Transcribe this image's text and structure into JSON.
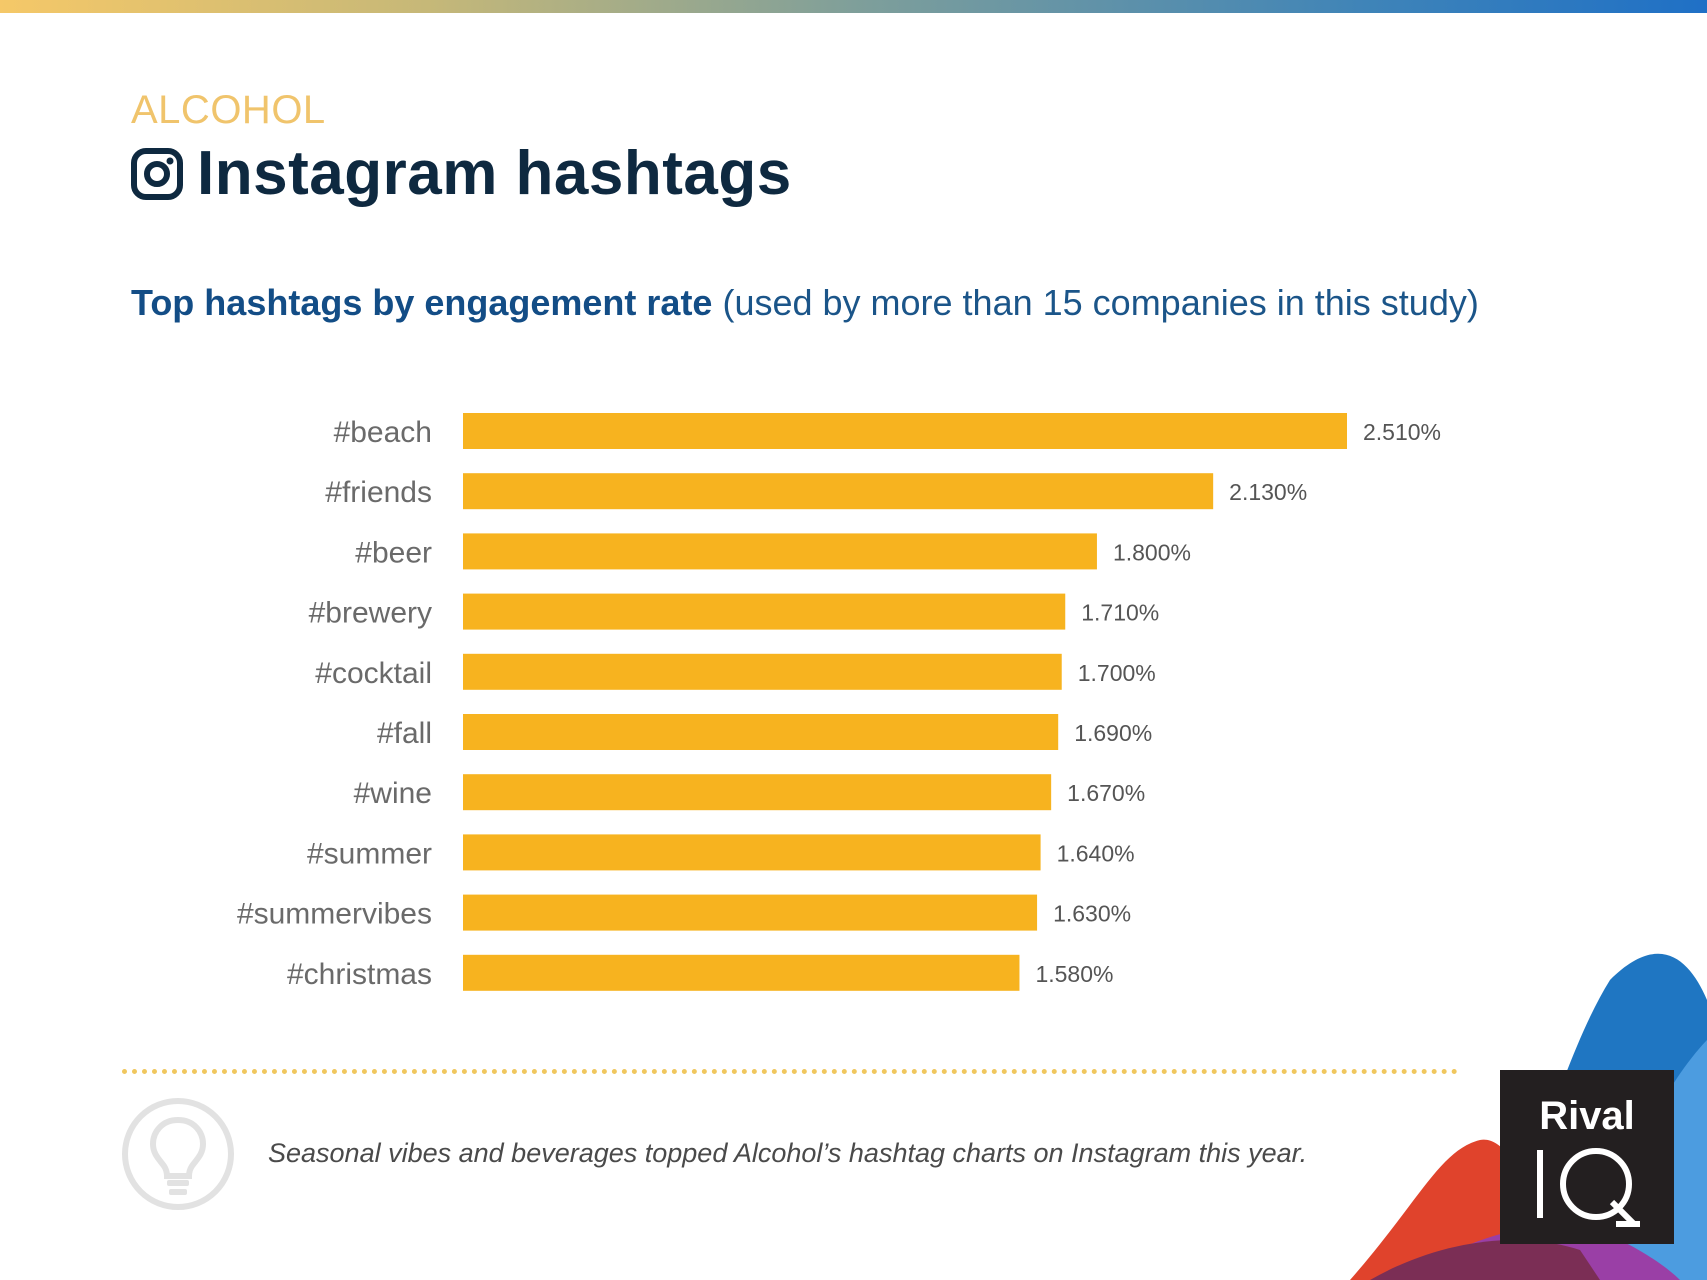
{
  "header": {
    "category": "ALCOHOL",
    "title": "Instagram hashtags",
    "subtitle_bold": "Top hashtags by engagement rate",
    "subtitle_rest": " (used by more than 15 companies in this study)"
  },
  "chart_data": {
    "type": "bar",
    "orientation": "horizontal",
    "title": "Top hashtags by engagement rate",
    "categories": [
      "#beach",
      "#friends",
      "#beer",
      "#brewery",
      "#cocktail",
      "#fall",
      "#wine",
      "#summer",
      "#summervibes",
      "#christmas"
    ],
    "values": [
      2.51,
      2.13,
      1.8,
      1.71,
      1.7,
      1.69,
      1.67,
      1.64,
      1.63,
      1.58
    ],
    "value_labels": [
      "2.510%",
      "2.130%",
      "1.800%",
      "1.710%",
      "1.700%",
      "1.690%",
      "1.670%",
      "1.640%",
      "1.630%",
      "1.580%"
    ],
    "xlim": [
      0,
      2.51
    ],
    "bar_color": "#f7b31f"
  },
  "footer": {
    "insight": "Seasonal vibes and beverages topped Alcohol’s hashtag charts on Instagram this year.",
    "logo_text_top": "Rival",
    "logo_text_bottom": "IQ"
  }
}
